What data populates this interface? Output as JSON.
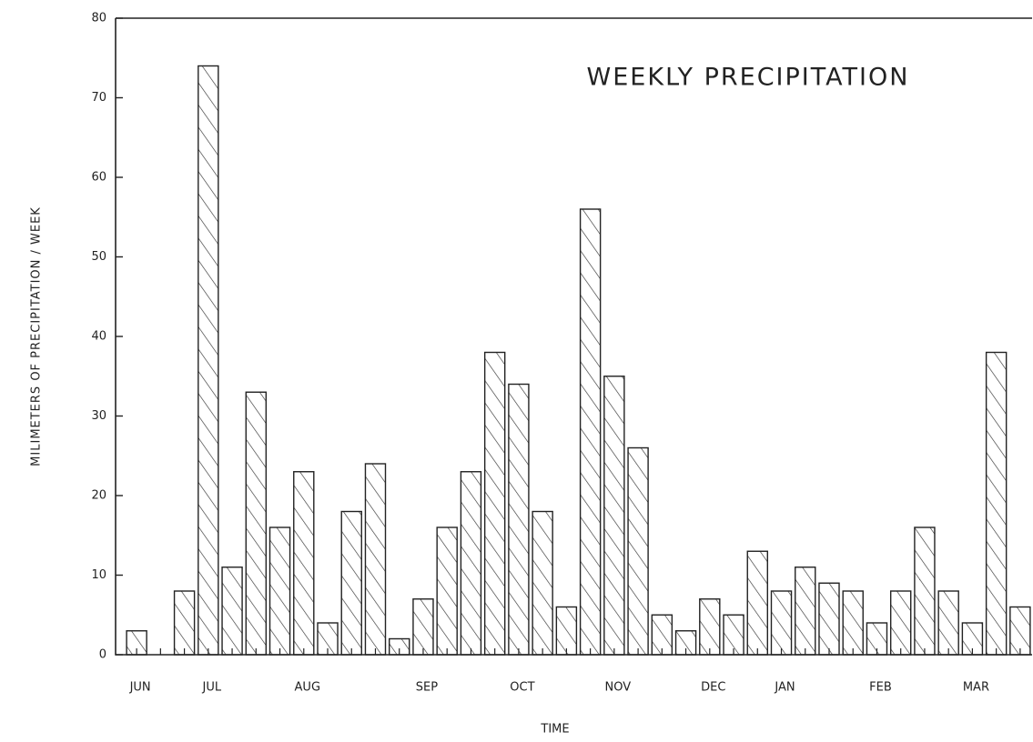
{
  "chart_data": {
    "type": "bar",
    "title": "WEEKLY PRECIPITATION",
    "x_label": "TIME",
    "y_label": "MILIMETERS OF PRECIPITATION / WEEK",
    "categories": [
      "JUN",
      null,
      null,
      "JUL",
      null,
      null,
      null,
      "AUG",
      null,
      null,
      null,
      null,
      "SEP",
      null,
      null,
      null,
      "OCT",
      null,
      null,
      null,
      "NOV",
      null,
      null,
      null,
      "DEC",
      null,
      null,
      "JAN",
      null,
      null,
      null,
      "FEB",
      null,
      null,
      null,
      "MAR",
      null,
      null
    ],
    "values": [
      3,
      0,
      8,
      74,
      11,
      33,
      16,
      23,
      4,
      18,
      24,
      2,
      7,
      16,
      23,
      38,
      34,
      18,
      6,
      56,
      35,
      26,
      5,
      3,
      7,
      5,
      13,
      8,
      11,
      9,
      8,
      4,
      8,
      16,
      8,
      4,
      38,
      6
    ],
    "color": "#222222",
    "ylim": [
      0,
      80
    ],
    "yticks": [
      0,
      10,
      20,
      30,
      40,
      50,
      60,
      70,
      80
    ],
    "grid": false
  }
}
